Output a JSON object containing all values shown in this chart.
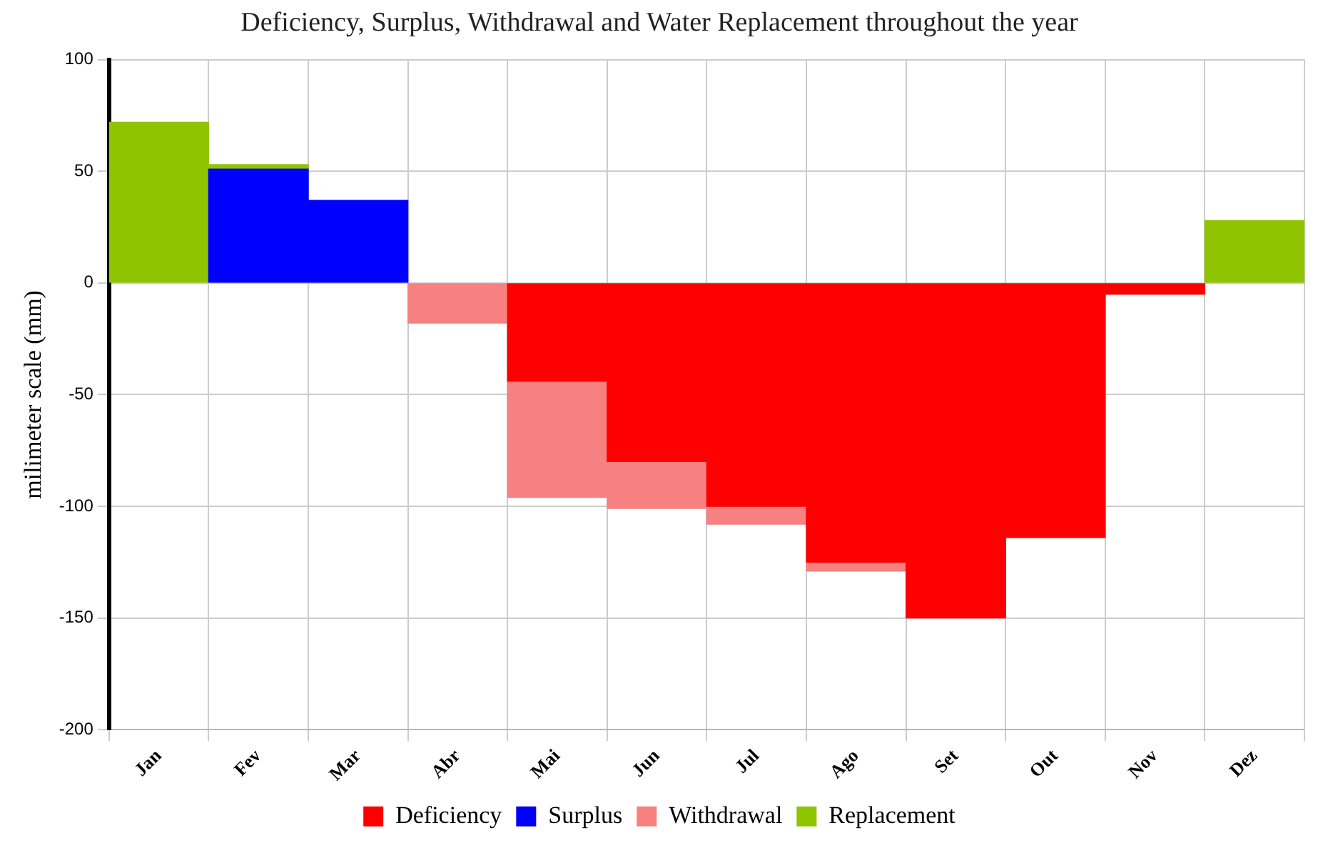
{
  "chart_data": {
    "type": "bar",
    "title": "Deficiency, Surplus, Withdrawal and Water Replacement throughout the year",
    "ylabel": "milimeter scale (mm)",
    "categories": [
      "Jan",
      "Fev",
      "Mar",
      "Abr",
      "Mai",
      "Jun",
      "Jul",
      "Ago",
      "Set",
      "Out",
      "Nov",
      "Dez"
    ],
    "series": [
      {
        "name": "Deficiency",
        "color": "#ff0000",
        "values": [
          null,
          null,
          null,
          null,
          -44,
          -80,
          -100,
          -125,
          -150,
          -114,
          -5,
          null
        ]
      },
      {
        "name": "Surplus",
        "color": "#0000ff",
        "values": [
          null,
          51,
          37,
          null,
          null,
          null,
          null,
          null,
          null,
          null,
          null,
          null
        ]
      },
      {
        "name": "Withdrawal",
        "color": "#f78080",
        "values": [
          null,
          null,
          null,
          -18,
          -52,
          -21,
          -8,
          -4,
          null,
          null,
          null,
          null
        ]
      },
      {
        "name": "Replacement",
        "color": "#8fc400",
        "values": [
          72,
          2,
          null,
          null,
          null,
          null,
          null,
          null,
          null,
          null,
          null,
          28
        ]
      }
    ],
    "stacked": true,
    "ylim": [
      -200,
      100
    ],
    "yticks": [
      -200,
      -150,
      -100,
      -50,
      0,
      50,
      100
    ],
    "grid": true,
    "legend": "bottom"
  }
}
